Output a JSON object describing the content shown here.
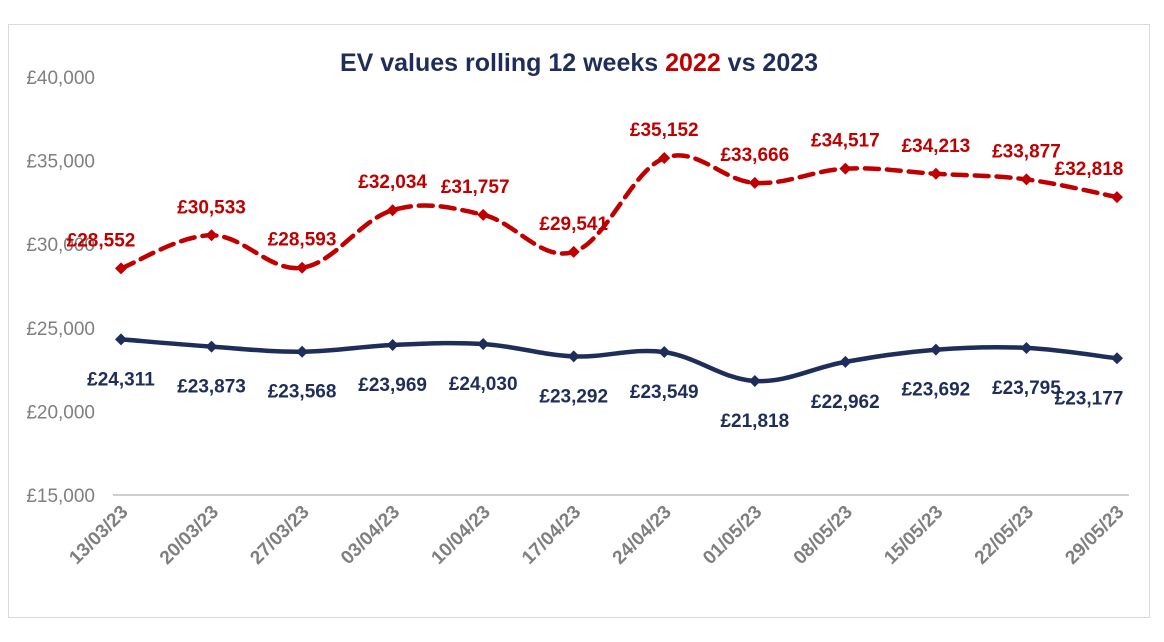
{
  "chart_data": {
    "type": "line",
    "title_parts": [
      {
        "text": "EV values rolling 12 weeks ",
        "color": "#1f2d5a"
      },
      {
        "text": "2022",
        "color": "#c00000"
      },
      {
        "text": " vs 2023",
        "color": "#1f2d5a"
      }
    ],
    "categories": [
      "13/03/23",
      "20/03/23",
      "27/03/23",
      "03/04/23",
      "10/04/23",
      "17/04/23",
      "24/04/23",
      "01/05/23",
      "08/05/23",
      "15/05/23",
      "22/05/23",
      "29/05/23"
    ],
    "y_ticks": [
      "£15,000",
      "£20,000",
      "£25,000",
      "£30,000",
      "£35,000",
      "£40,000"
    ],
    "ylim": [
      15000,
      40000
    ],
    "grid": false,
    "legend": "none",
    "series": [
      {
        "color": "#c00000",
        "dash": true,
        "values": [
          28552,
          30533,
          28593,
          32034,
          31757,
          29541,
          35152,
          33666,
          34517,
          34213,
          33877,
          32818
        ],
        "labels": [
          "£28,552",
          "£30,533",
          "£28,593",
          "£32,034",
          "£31,757",
          "£29,541",
          "£35,152",
          "£33,666",
          "£34,517",
          "£34,213",
          "£33,877",
          "£32,818"
        ]
      },
      {
        "color": "#1f2d5a",
        "dash": false,
        "values": [
          24311,
          23873,
          23568,
          23969,
          24030,
          23292,
          23549,
          21818,
          22962,
          23692,
          23795,
          23177
        ],
        "labels": [
          "£24,311",
          "£23,873",
          "£23,568",
          "£23,969",
          "£24,030",
          "£23,292",
          "£23,549",
          "£21,818",
          "£22,962",
          "£23,692",
          "£23,795",
          "£23,177"
        ]
      }
    ]
  }
}
